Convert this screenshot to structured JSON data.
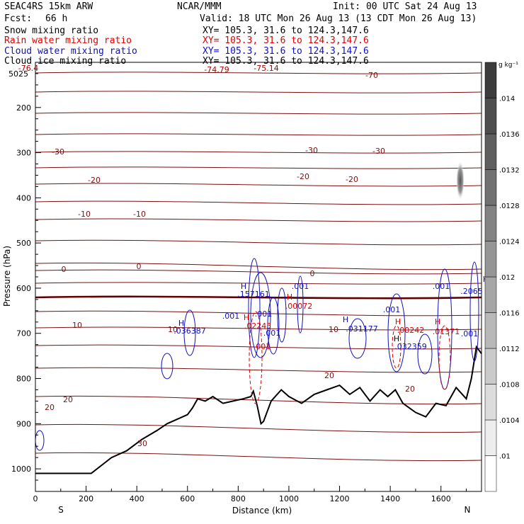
{
  "header": {
    "model": "SEAC4RS 15km ARW",
    "center": "NCAR/MMM",
    "init": "Init: 00 UTC Sat 24 Aug 13",
    "fcst_label": "Fcst:",
    "fcst_value": "66 h",
    "valid": "Valid: 18 UTC Mon 26 Aug 13 (13 CDT Mon 26 Aug 13)",
    "fields": [
      {
        "name": "Snow mixing ratio",
        "xy": "XY= 105.3, 31.6 to 124.3,147.6",
        "color": "#000000"
      },
      {
        "name": "Rain water mixing ratio",
        "xy": "XY= 105.3, 31.6 to 124.3,147.6",
        "color": "#e00000"
      },
      {
        "name": "Cloud water mixing ratio",
        "xy": "XY= 105.3, 31.6 to 124.3,147.6",
        "color": "#1010c0"
      },
      {
        "name": "Cloud ice mixing ratio",
        "xy": "XY= 105.3, 31.6 to 124.3,147.6",
        "color": "#000000"
      }
    ]
  },
  "chart_data": {
    "type": "line",
    "title": "",
    "xlabel": "Distance (km)",
    "ylabel": "Pressure (hPa)",
    "xlim": [
      0,
      1760
    ],
    "ylim": [
      100,
      1050
    ],
    "x_ticks": [
      0,
      200,
      400,
      600,
      800,
      1000,
      1200,
      1400,
      1600
    ],
    "y_ticks": [
      200,
      300,
      400,
      500,
      600,
      700,
      800,
      900,
      1000
    ],
    "x_end_labels": {
      "left": "S",
      "right": "N"
    },
    "colorbar": {
      "units": "g kg⁻¹",
      "tick_labels": [
        ".01",
        ".0104",
        ".0108",
        ".0112",
        ".0116",
        ".012",
        ".0124",
        ".0128",
        ".0132",
        ".0136",
        ".014"
      ]
    },
    "temperature_isotherms": [
      {
        "level": -70,
        "label": "-70"
      },
      {
        "level": -30,
        "label": "-30"
      },
      {
        "level": -20,
        "label": "-20"
      },
      {
        "level": -10,
        "label": "-10"
      },
      {
        "level": 0,
        "label": "0"
      },
      {
        "level": 10,
        "label": "10"
      },
      {
        "level": 20,
        "label": "20"
      },
      {
        "level": 30,
        "label": "30"
      }
    ],
    "terrain": {
      "distance_km": [
        0,
        100,
        220,
        300,
        360,
        420,
        480,
        520,
        560,
        600,
        620,
        640,
        670,
        700,
        740,
        780,
        820,
        850,
        860,
        875,
        890,
        900,
        930,
        970,
        1000,
        1050,
        1100,
        1150,
        1200,
        1240,
        1280,
        1320,
        1360,
        1390,
        1420,
        1450,
        1500,
        1540,
        1580,
        1620,
        1660,
        1700,
        1720,
        1740,
        1760
      ],
      "pressure_hpa": [
        1010,
        1010,
        1010,
        975,
        960,
        935,
        915,
        900,
        890,
        880,
        865,
        845,
        850,
        840,
        855,
        850,
        845,
        840,
        828,
        860,
        900,
        895,
        850,
        825,
        840,
        855,
        835,
        825,
        815,
        835,
        820,
        850,
        825,
        840,
        825,
        855,
        875,
        885,
        855,
        860,
        820,
        845,
        800,
        730,
        745
      ]
    },
    "annotations": [
      {
        "text": "-76.4",
        "color": "#b00000"
      },
      {
        "text": "-74.79",
        "color": "#b00000"
      },
      {
        "text": "-75.14",
        "color": "#b00000"
      },
      {
        "text": "5025",
        "color": "#000000"
      },
      {
        "text": "H",
        "color": "#1010c0"
      },
      {
        "text": ".157161",
        "color": "#1010c0"
      },
      {
        "text": "H",
        "color": "#e00000"
      },
      {
        "text": ".00072",
        "color": "#e00000"
      },
      {
        "text": ".001",
        "color": "#1010c0"
      },
      {
        "text": ".001",
        "color": "#1010c0"
      },
      {
        "text": ".001",
        "color": "#1010c0"
      },
      {
        "text": "H",
        "color": "#e00000"
      },
      {
        "text": ".02245",
        "color": "#e00000"
      },
      {
        "text": ".001",
        "color": "#1010c0"
      },
      {
        "text": ".001",
        "color": "#e00000"
      },
      {
        "text": "H",
        "color": "#1010c0"
      },
      {
        "text": ".036387",
        "color": "#1010c0"
      },
      {
        "text": "H",
        "color": "#1010c0"
      },
      {
        "text": ".031177",
        "color": "#1010c0"
      },
      {
        "text": ".001",
        "color": "#1010c0"
      },
      {
        "text": "H",
        "color": "#e00000"
      },
      {
        "text": ".00242",
        "color": "#e00000"
      },
      {
        "text": "H",
        "color": "#000000"
      },
      {
        "text": ".032359",
        "color": "#1010c0"
      },
      {
        "text": ".001",
        "color": "#1010c0"
      },
      {
        "text": "H",
        "color": "#e00000"
      },
      {
        "text": ".01371",
        "color": "#e00000"
      },
      {
        "text": "H",
        "color": "#1010c0"
      },
      {
        "text": ".2065",
        "color": "#1010c0"
      },
      {
        "text": ".001",
        "color": "#1010c0"
      }
    ]
  }
}
